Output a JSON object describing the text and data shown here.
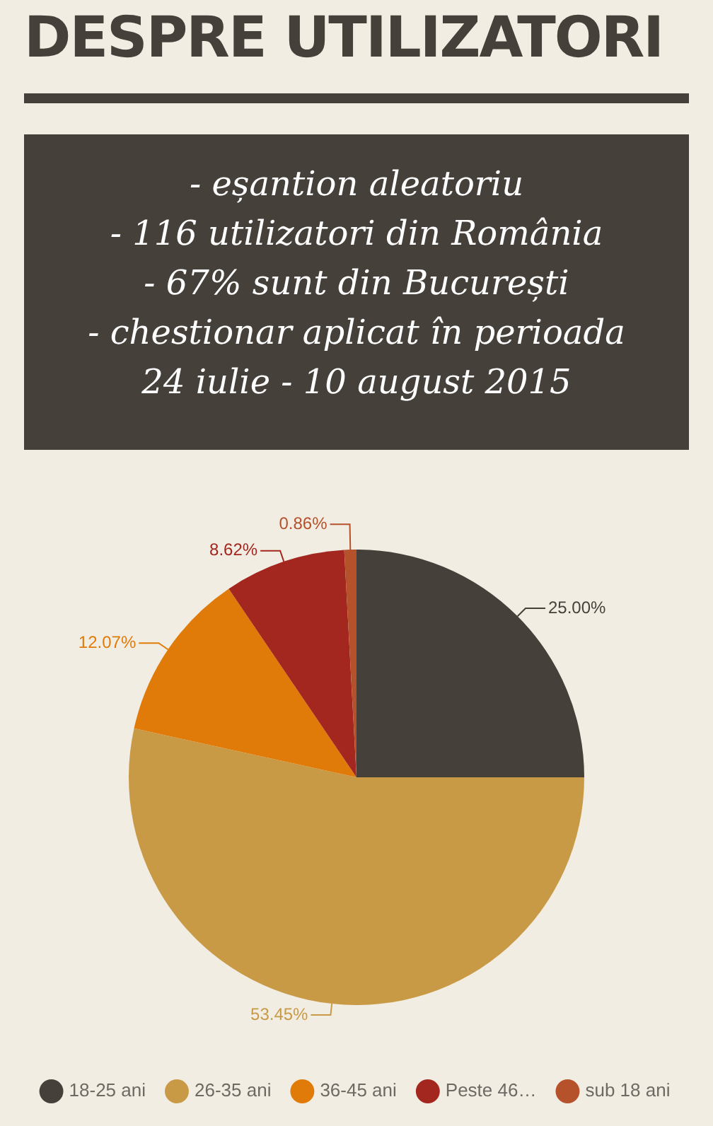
{
  "chart_data": {
    "type": "pie",
    "title": "DESPRE UTILIZATORI",
    "subtitle": "- eșantion aleatoriu\n- 116 utilizatori din România\n- 67% sunt din București\n- chestionar aplicat în perioada\n24 iulie - 10 august 2015",
    "categories": [
      "18-25 ani",
      "26-35 ani",
      "36-45 ani",
      "Peste 46…",
      "sub 18 ani"
    ],
    "values": [
      25.0,
      53.45,
      12.07,
      8.62,
      0.86
    ],
    "value_labels": [
      "25.00%",
      "53.45%",
      "12.07%",
      "8.62%",
      "0.86%"
    ],
    "colors": [
      "#45413a",
      "#c99a45",
      "#e07b0a",
      "#a3271f",
      "#b5512b"
    ],
    "legend": "bottom"
  }
}
